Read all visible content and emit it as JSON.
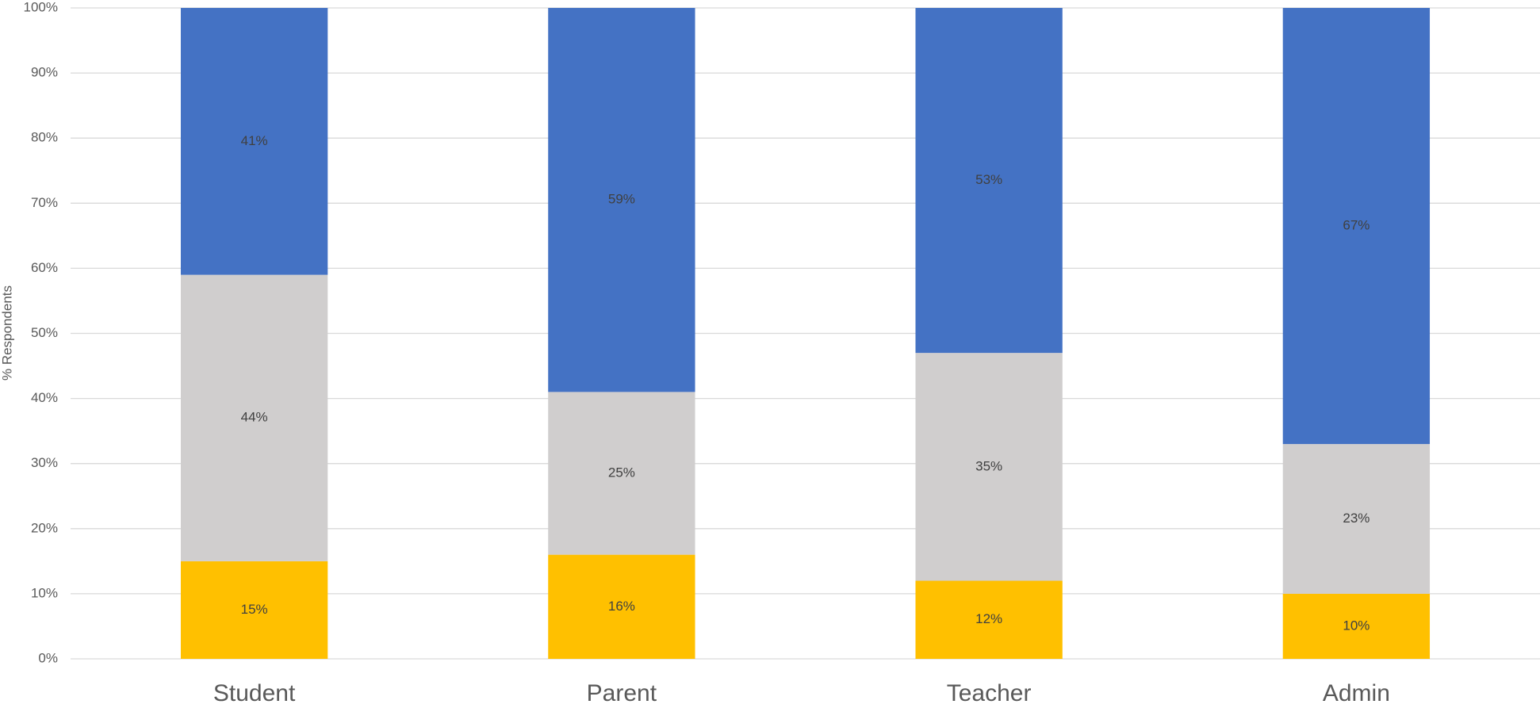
{
  "chart_data": {
    "type": "stacked_bar",
    "y_label": "% Respondents",
    "categories": [
      "Student",
      "Parent",
      "Teacher",
      "Admin"
    ],
    "series": [
      {
        "color": "#ffc000",
        "values": [
          15,
          16,
          12,
          10
        ],
        "value_labels": [
          "15%",
          "16%",
          "12%",
          "10%"
        ]
      },
      {
        "color": "#d0cece",
        "values": [
          44,
          25,
          35,
          23
        ],
        "value_labels": [
          "44%",
          "25%",
          "35%",
          "23%"
        ]
      },
      {
        "color": "#4472c4",
        "values": [
          41,
          59,
          53,
          67
        ],
        "value_labels": [
          "41%",
          "59%",
          "53%",
          "67%"
        ]
      }
    ],
    "ylim": [
      0,
      100
    ],
    "yticks": [
      {
        "value": 0,
        "label": "0%"
      },
      {
        "value": 10,
        "label": "10%"
      },
      {
        "value": 20,
        "label": "20%"
      },
      {
        "value": 30,
        "label": "30%"
      },
      {
        "value": 40,
        "label": "40%"
      },
      {
        "value": 50,
        "label": "50%"
      },
      {
        "value": 60,
        "label": "60%"
      },
      {
        "value": 70,
        "label": "70%"
      },
      {
        "value": 80,
        "label": "80%"
      },
      {
        "value": 90,
        "label": "90%"
      },
      {
        "value": 100,
        "label": "100%"
      }
    ],
    "grid": true
  }
}
